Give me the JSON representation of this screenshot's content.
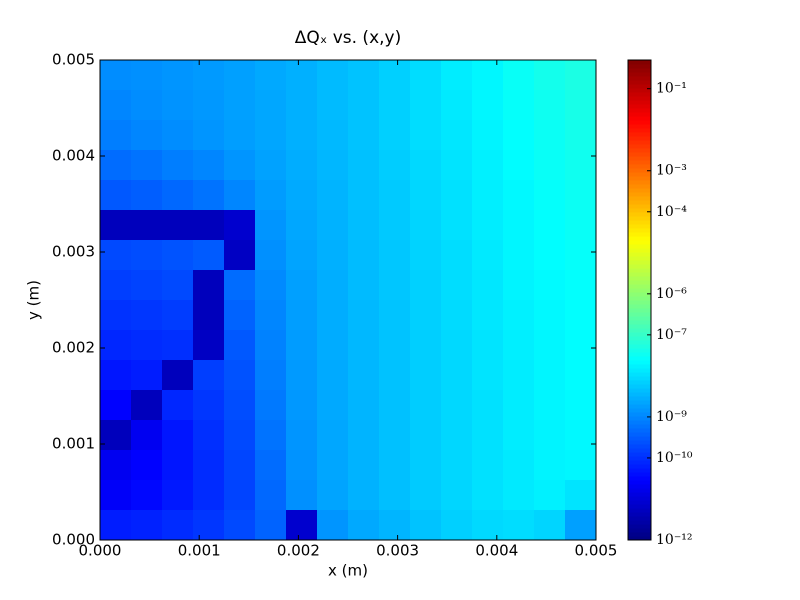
{
  "chart_data": {
    "type": "heatmap",
    "title": "ΔQₓ vs. (x,y)",
    "xlabel": "x (m)",
    "ylabel": "y (m)",
    "xlim": [
      0,
      0.005
    ],
    "ylim": [
      0,
      0.005
    ],
    "xticks": [
      {
        "value": 0,
        "label": "0.000"
      },
      0.001,
      0.002,
      0.003,
      0.004,
      0.005
    ],
    "yticks": [
      {
        "value": 0,
        "label": "0.000"
      },
      0.001,
      0.002,
      0.003,
      0.004,
      0.005
    ],
    "colormap": "jet",
    "color_scale": "log",
    "zlim": [
      1e-12,
      0.5
    ],
    "zticks": [
      {
        "value": 1e-12,
        "label": "10⁻¹²"
      },
      {
        "value": 1e-10,
        "label": "10⁻¹⁰"
      },
      {
        "value": 1e-09,
        "label": "10⁻⁹"
      },
      {
        "value": 1e-07,
        "label": "10⁻⁷"
      },
      {
        "value": 1e-06,
        "label": "10⁻⁶"
      },
      {
        "value": 0.0001,
        "label": "10⁻⁴"
      },
      {
        "value": 0.001,
        "label": "10⁻³"
      },
      {
        "value": 0.1,
        "label": "10⁻¹"
      }
    ],
    "values": [
      [
        1.2e-09,
        1.3e-09,
        1.5e-09,
        1.7e-09,
        2e-09,
        2.5e-09,
        3e-09,
        4e-09,
        5e-09,
        7e-09,
        1e-08,
        1.5e-08,
        2e-08,
        3e-08,
        4e-08,
        5e-08
      ],
      [
        1e-09,
        1.2e-09,
        1.4e-09,
        1.6e-09,
        2e-09,
        2.4e-09,
        3e-09,
        4e-09,
        5e-09,
        7e-09,
        1e-08,
        1.4e-08,
        2e-08,
        2.8e-08,
        3.5e-08,
        4.5e-08
      ],
      [
        8e-10,
        1e-09,
        1.2e-09,
        1.5e-09,
        1.9e-09,
        2.3e-09,
        3e-09,
        3.8e-09,
        5e-09,
        7e-09,
        1e-08,
        1.3e-08,
        1.8e-08,
        2.5e-08,
        3.2e-08,
        4e-08
      ],
      [
        5e-10,
        6e-10,
        8e-10,
        1e-09,
        1.5e-09,
        2.1e-09,
        2.8e-09,
        3.6e-09,
        4.8e-09,
        6.5e-09,
        9e-09,
        1.2e-08,
        1.7e-08,
        2.3e-08,
        3e-08,
        3.6e-08
      ],
      [
        3e-10,
        3.5e-10,
        4.5e-10,
        6e-10,
        1e-09,
        1.8e-09,
        2.6e-09,
        3.4e-09,
        4.6e-09,
        6e-09,
        8.5e-09,
        1.1e-08,
        1.6e-08,
        2.1e-08,
        2.7e-08,
        3.3e-08
      ],
      [
        5e-12,
        5e-12,
        5e-12,
        5e-12,
        8e-12,
        1.5e-09,
        2.4e-09,
        3.2e-09,
        4.4e-09,
        5.8e-09,
        8e-09,
        1.1e-08,
        1.5e-08,
        2e-08,
        2.5e-08,
        3e-08
      ],
      [
        2e-10,
        2.2e-10,
        2.6e-10,
        3.2e-10,
        6e-12,
        1.3e-09,
        2.2e-09,
        3e-09,
        4.2e-09,
        5.6e-09,
        7.6e-09,
        1e-08,
        1.4e-08,
        1.9e-08,
        2.4e-08,
        2.8e-08
      ],
      [
        1.5e-10,
        1.7e-10,
        2e-10,
        5e-12,
        5e-10,
        1.1e-09,
        2e-09,
        2.9e-09,
        4e-09,
        5.4e-09,
        7.2e-09,
        1e-08,
        1.3e-08,
        1.8e-08,
        2.2e-08,
        2.6e-08
      ],
      [
        1.1e-10,
        1.2e-10,
        1.4e-10,
        5e-12,
        4e-10,
        1e-09,
        1.9e-09,
        2.8e-09,
        3.8e-09,
        5.2e-09,
        7e-09,
        9.5e-09,
        1.3e-08,
        1.7e-08,
        2.1e-08,
        2.5e-08
      ],
      [
        8e-11,
        9e-11,
        1e-10,
        6e-12,
        3e-10,
        9e-10,
        1.8e-09,
        2.7e-09,
        3.7e-09,
        5e-09,
        6.8e-09,
        9e-09,
        1.2e-08,
        1.6e-08,
        2e-08,
        2.4e-08
      ],
      [
        5e-11,
        6e-11,
        5e-12,
        1.5e-10,
        2.5e-10,
        8e-10,
        1.7e-09,
        2.6e-09,
        3.6e-09,
        4.9e-09,
        6.6e-09,
        8.8e-09,
        1.2e-08,
        1.5e-08,
        1.9e-08,
        2.3e-08
      ],
      [
        3e-11,
        5e-12,
        8e-11,
        1.2e-10,
        2.2e-10,
        7e-10,
        1.6e-09,
        2.5e-09,
        3.5e-09,
        4.8e-09,
        6.5e-09,
        8.6e-09,
        1.1e-08,
        1.5e-08,
        1.9e-08,
        2.2e-08
      ],
      [
        5e-12,
        2e-11,
        5e-11,
        1e-10,
        2e-10,
        6e-10,
        1.5e-09,
        2.4e-09,
        3.4e-09,
        4.7e-09,
        6.4e-09,
        8.5e-09,
        1.1e-08,
        1.5e-08,
        1.8e-08,
        2.1e-08
      ],
      [
        2e-11,
        3e-11,
        5e-11,
        9e-11,
        1.8e-10,
        5e-10,
        1.4e-09,
        2.3e-09,
        3.3e-09,
        4.6e-09,
        6.3e-09,
        8.4e-09,
        1.1e-08,
        1.4e-08,
        1.8e-08,
        2e-08
      ],
      [
        2.5e-11,
        3.5e-11,
        5.5e-11,
        9e-11,
        1.7e-10,
        4.5e-10,
        1.3e-09,
        2.2e-09,
        3.2e-09,
        4.5e-09,
        6.2e-09,
        8.3e-09,
        1.1e-08,
        1.4e-08,
        1.7e-08,
        1.2e-08
      ],
      [
        6e-11,
        7e-11,
        9e-11,
        1.2e-10,
        2e-10,
        4e-10,
        8e-12,
        1.5e-09,
        2.5e-09,
        3.5e-09,
        5e-09,
        7e-09,
        9e-09,
        1e-08,
        8e-09,
        2e-09
      ]
    ]
  }
}
